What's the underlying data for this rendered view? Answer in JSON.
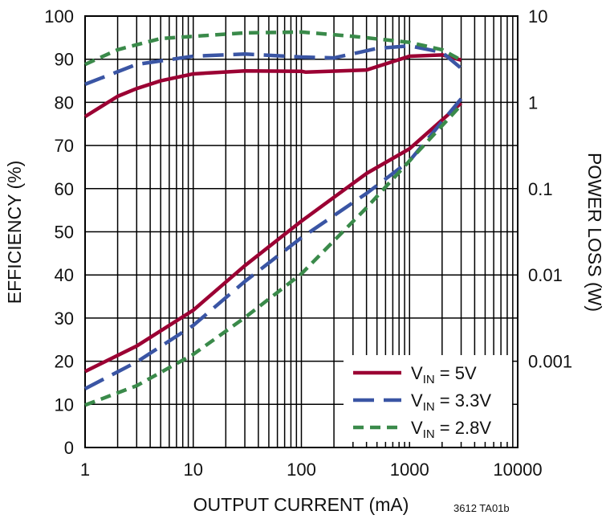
{
  "chart_data": {
    "type": "line",
    "title": "",
    "xlabel": "OUTPUT CURRENT (mA)",
    "ylabel": "EFFICIENCY (%)",
    "y2label": "POWER LOSS (W)",
    "xscale": "log",
    "xlim": [
      1,
      10000
    ],
    "ylim": [
      0,
      100
    ],
    "y2scale": "log",
    "y2lim": [
      0.0001,
      10
    ],
    "grid": true,
    "legend_position": "bottom-right",
    "xticks": [
      "1",
      "10",
      "100",
      "1000",
      "10000"
    ],
    "yticks": [
      "0",
      "10",
      "20",
      "30",
      "40",
      "50",
      "60",
      "70",
      "80",
      "90",
      "100"
    ],
    "y2ticks": [
      "0.001",
      "0.01",
      "0.1",
      "1",
      "10"
    ],
    "annotation": "3612 TA01b",
    "series": [
      {
        "name": "VIN = 5V",
        "label_main": "V",
        "label_sub": "IN",
        "label_rest": " = 5V",
        "color": "#9b0033",
        "dash": "solid",
        "efficiency": {
          "x": [
            1,
            2,
            3,
            5,
            10,
            30,
            100,
            110,
            400,
            1000,
            2000,
            3000
          ],
          "y": [
            76.7,
            81.4,
            83.2,
            85,
            86.6,
            87.3,
            87.2,
            87,
            87.5,
            90.7,
            91,
            89.8
          ]
        },
        "power_loss": {
          "x": [
            1,
            3,
            10,
            30,
            100,
            400,
            1000,
            3000
          ],
          "y": [
            0.00076,
            0.0015,
            0.0039,
            0.0128,
            0.042,
            0.15,
            0.29,
            0.98
          ]
        }
      },
      {
        "name": "VIN = 3.3V",
        "label_main": "V",
        "label_sub": "IN",
        "label_rest": " = 3.3V",
        "color": "#3a55a4",
        "dash": "long",
        "efficiency": {
          "x": [
            1,
            3,
            10,
            30,
            100,
            200,
            500,
            1000,
            2000,
            3000
          ],
          "y": [
            84.2,
            88.8,
            90.7,
            91.2,
            90.5,
            90.3,
            92.5,
            93.1,
            91.6,
            87.9
          ]
        },
        "power_loss": {
          "x": [
            1,
            3,
            10,
            30,
            100,
            400,
            1000,
            3000
          ],
          "y": [
            0.00048,
            0.00098,
            0.0026,
            0.0084,
            0.027,
            0.088,
            0.21,
            1.1
          ]
        }
      },
      {
        "name": "VIN = 2.8V",
        "label_main": "V",
        "label_sub": "IN",
        "label_rest": " = 2.8V",
        "color": "#3a8a4a",
        "dash": "short",
        "efficiency": {
          "x": [
            1,
            2,
            5,
            10,
            30,
            100,
            300,
            1000,
            2000,
            3000
          ],
          "y": [
            88.8,
            92.2,
            94.8,
            95.3,
            96.1,
            96.3,
            95.3,
            93.9,
            92.2,
            89.8
          ]
        },
        "power_loss": {
          "x": [
            1,
            3,
            10,
            30,
            100,
            400,
            1000,
            3000
          ],
          "y": [
            0.00031,
            0.00052,
            0.0012,
            0.0032,
            0.0103,
            0.06,
            0.21,
            0.93
          ]
        }
      }
    ]
  }
}
